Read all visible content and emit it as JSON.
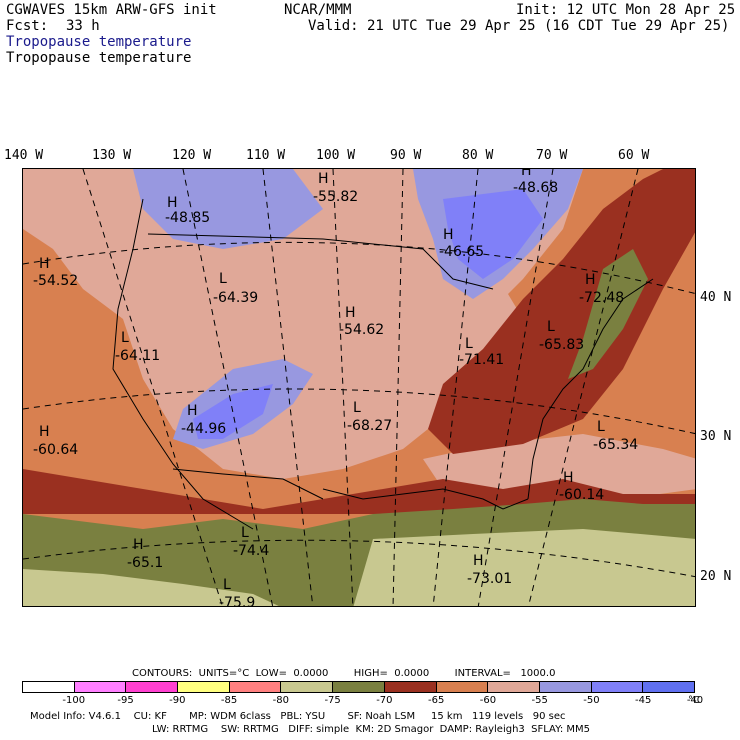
{
  "header": {
    "model": "CGWAVES 15km ARW-GFS init",
    "org": "NCAR/MMM",
    "init": "Init: 12 UTC Mon 28 Apr 25",
    "fcst_label": "Fcst:",
    "fcst_value": "33 h",
    "valid": "Valid: 21 UTC Tue 29 Apr 25 (16 CDT Tue 29 Apr 25)",
    "field_line1": "Tropopause temperature",
    "field_line2": "Tropopause temperature"
  },
  "axes": {
    "longitude_labels": [
      "140 W",
      "130 W",
      "120 W",
      "110 W",
      "100 W",
      "90 W",
      "80 W",
      "70 W",
      "60 W"
    ],
    "latitude_labels": [
      "40 N",
      "30 N",
      "20 N"
    ]
  },
  "map_labels": [
    {
      "type": "H",
      "value": "-48.85"
    },
    {
      "type": "H",
      "value": "-55.82"
    },
    {
      "type": "H",
      "value": "-48.68"
    },
    {
      "type": "H",
      "value": "-46.65"
    },
    {
      "type": "H",
      "value": "-54.52"
    },
    {
      "type": "L",
      "value": "-64.39"
    },
    {
      "type": "H",
      "value": "-54.62"
    },
    {
      "type": "L",
      "value": "-64.11"
    },
    {
      "type": "L",
      "value": "-71.41"
    },
    {
      "type": "L",
      "value": "-65.83"
    },
    {
      "type": "H",
      "value": "-72.48"
    },
    {
      "type": "H",
      "value": "-44.96"
    },
    {
      "type": "L",
      "value": "-68.27"
    },
    {
      "type": "H",
      "value": "-60.64"
    },
    {
      "type": "L",
      "value": "-65.34"
    },
    {
      "type": "H",
      "value": "-60.14"
    },
    {
      "type": "H",
      "value": "-65.1"
    },
    {
      "type": "L",
      "value": "-74.4"
    },
    {
      "type": "H",
      "value": "-73.01"
    },
    {
      "type": "L",
      "value": "-75.9"
    }
  ],
  "contours": {
    "label": "CONTOURS:",
    "units": "UNITS=°C",
    "low": "LOW=  0.0000",
    "high": "HIGH=  0.0000",
    "interval": "INTERVAL=   1000.0"
  },
  "colorbar": {
    "colors": [
      "#ffffff",
      "#ff7fff",
      "#ff40d0",
      "#ffff80",
      "#ff8080",
      "#c8c890",
      "#7a8040",
      "#9a3020",
      "#d88050",
      "#e0a898",
      "#9898e0",
      "#8080f8",
      "#6070f0"
    ],
    "ticks": [
      "-100",
      "-95",
      "-90",
      "-85",
      "-80",
      "-75",
      "-70",
      "-65",
      "-60",
      "-55",
      "-50",
      "-45",
      "-40"
    ],
    "unit": "°C"
  },
  "footer": {
    "line1": "Model Info: V4.6.1    CU: KF       MP: WDM 6class   PBL: YSU       SF: Noah LSM     15 km   119 levels   90 sec",
    "line2": "LW: RRTMG    SW: RRTMG   DIFF: simple  KM: 2D Smagor  DAMP: Rayleigh3  SFLAY: MM5"
  },
  "map_colors": {
    "cold_green": "#7a8040",
    "very_cold": "#c8c890",
    "dark_red": "#9a3020",
    "orange": "#d88050",
    "pink": "#e0a898",
    "lavender": "#9898e0",
    "blue": "#8080f8"
  }
}
